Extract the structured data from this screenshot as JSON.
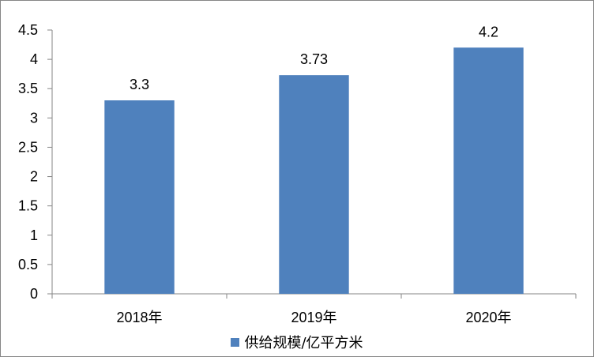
{
  "chart_data": {
    "type": "bar",
    "categories": [
      "2018年",
      "2019年",
      "2020年"
    ],
    "series": [
      {
        "name": "供给规模/亿平方米",
        "values": [
          3.3,
          3.73,
          4.2
        ],
        "color": "#4f81bd"
      }
    ],
    "data_labels": [
      "3.3",
      "3.73",
      "4.2"
    ],
    "y_ticks": [
      "0",
      "0.5",
      "1",
      "1.5",
      "2",
      "2.5",
      "3",
      "3.5",
      "4",
      "4.5"
    ],
    "ylim": [
      0,
      4.5
    ],
    "title": "",
    "xlabel": "",
    "ylabel": "",
    "grid": false,
    "legend_position": "bottom"
  }
}
